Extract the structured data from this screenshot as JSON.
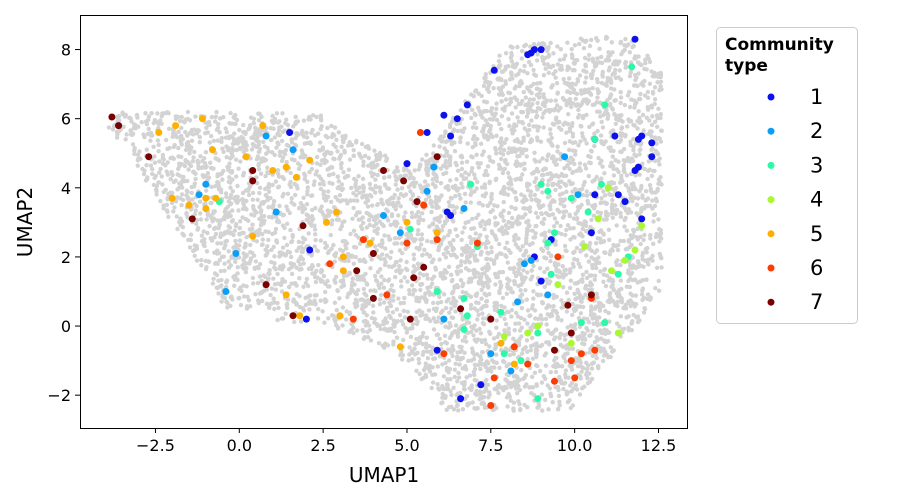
{
  "chart_data": {
    "type": "scatter",
    "title": "",
    "xlabel": "UMAP1",
    "ylabel": "UMAP2",
    "xlim": [
      -4.75,
      13.35
    ],
    "ylim": [
      -2.95,
      9.0
    ],
    "xticks": [
      -2.5,
      0.0,
      2.5,
      5.0,
      7.5,
      10.0,
      12.5
    ],
    "xtick_labels": [
      "−2.5",
      "0.0",
      "2.5",
      "5.0",
      "7.5",
      "10.0",
      "12.5"
    ],
    "yticks": [
      -2,
      0,
      2,
      4,
      6,
      8
    ],
    "ytick_labels": [
      "−2",
      "0",
      "2",
      "4",
      "6",
      "8"
    ],
    "grid": false,
    "legend": {
      "title": "Community\ntype",
      "placement": "right-outside"
    },
    "background_points": {
      "color": "#d3d3d3",
      "description": "unlabeled cells",
      "count_approx": 5000
    },
    "series": [
      {
        "name": "1",
        "color": "#0a10ee",
        "points": [
          [
            8.7,
            7.9
          ],
          [
            8.8,
            8.0
          ],
          [
            9.0,
            8.0
          ],
          [
            8.6,
            7.85
          ],
          [
            7.6,
            7.4
          ],
          [
            11.8,
            8.3
          ],
          [
            6.8,
            6.4
          ],
          [
            6.1,
            6.1
          ],
          [
            6.5,
            6.0
          ],
          [
            1.5,
            5.6
          ],
          [
            5.6,
            5.6
          ],
          [
            6.3,
            5.5
          ],
          [
            11.2,
            5.5
          ],
          [
            12.0,
            5.5
          ],
          [
            10.6,
            5.4
          ],
          [
            12.3,
            5.3
          ],
          [
            11.9,
            5.4
          ],
          [
            12.3,
            4.9
          ],
          [
            5.0,
            4.7
          ],
          [
            11.9,
            4.6
          ],
          [
            11.8,
            4.5
          ],
          [
            10.6,
            3.8
          ],
          [
            11.3,
            3.8
          ],
          [
            11.5,
            3.6
          ],
          [
            6.2,
            3.3
          ],
          [
            6.3,
            3.2
          ],
          [
            12.0,
            3.1
          ],
          [
            10.5,
            2.7
          ],
          [
            9.3,
            2.5
          ],
          [
            2.1,
            2.2
          ],
          [
            8.8,
            2.0
          ],
          [
            9.0,
            1.3
          ],
          [
            2.0,
            0.2
          ],
          [
            5.9,
            -0.7
          ],
          [
            7.2,
            -1.7
          ],
          [
            6.6,
            -2.1
          ]
        ]
      },
      {
        "name": "2",
        "color": "#0a9ef8",
        "points": [
          [
            -3.6,
            5.8
          ],
          [
            0.8,
            5.5
          ],
          [
            1.6,
            5.1
          ],
          [
            9.7,
            4.9
          ],
          [
            5.8,
            4.6
          ],
          [
            -1.0,
            4.1
          ],
          [
            -1.2,
            3.8
          ],
          [
            5.6,
            3.9
          ],
          [
            10.1,
            3.8
          ],
          [
            6.7,
            3.4
          ],
          [
            4.3,
            3.2
          ],
          [
            1.1,
            3.3
          ],
          [
            4.8,
            2.7
          ],
          [
            -0.1,
            2.1
          ],
          [
            8.5,
            1.8
          ],
          [
            8.7,
            1.9
          ],
          [
            -0.4,
            1.0
          ],
          [
            9.2,
            0.9
          ],
          [
            8.3,
            0.7
          ],
          [
            6.1,
            0.2
          ],
          [
            7.5,
            -0.8
          ],
          [
            8.1,
            -1.3
          ]
        ]
      },
      {
        "name": "3",
        "color": "#2afaa8",
        "points": [
          [
            11.7,
            7.5
          ],
          [
            10.9,
            6.4
          ],
          [
            6.9,
            4.1
          ],
          [
            10.6,
            5.4
          ],
          [
            9.0,
            4.1
          ],
          [
            10.8,
            4.1
          ],
          [
            9.2,
            3.9
          ],
          [
            -0.6,
            3.6
          ],
          [
            10.4,
            3.3
          ],
          [
            9.9,
            3.7
          ],
          [
            5.1,
            2.8
          ],
          [
            9.4,
            2.7
          ],
          [
            7.1,
            2.3
          ],
          [
            9.2,
            2.4
          ],
          [
            11.6,
            2.0
          ],
          [
            5.9,
            1.0
          ],
          [
            11.3,
            1.5
          ],
          [
            9.3,
            1.5
          ],
          [
            6.7,
            0.8
          ],
          [
            6.8,
            0.3
          ],
          [
            7.8,
            0.4
          ],
          [
            10.2,
            0.1
          ],
          [
            10.9,
            0.1
          ],
          [
            6.7,
            -0.1
          ],
          [
            8.9,
            -0.2
          ],
          [
            7.9,
            -0.8
          ],
          [
            8.4,
            -1.0
          ],
          [
            8.9,
            -2.1
          ]
        ]
      },
      {
        "name": "4",
        "color": "#aaf832",
        "points": [
          [
            11.0,
            4.0
          ],
          [
            10.7,
            3.1
          ],
          [
            12.0,
            2.9
          ],
          [
            10.3,
            2.3
          ],
          [
            11.8,
            2.2
          ],
          [
            11.5,
            1.9
          ],
          [
            11.1,
            1.6
          ],
          [
            9.5,
            1.2
          ],
          [
            8.9,
            0.0
          ],
          [
            8.6,
            -0.2
          ],
          [
            7.9,
            -0.3
          ],
          [
            9.9,
            -0.5
          ],
          [
            11.3,
            -0.2
          ]
        ]
      },
      {
        "name": "5",
        "color": "#fdb000",
        "points": [
          [
            -2.4,
            5.6
          ],
          [
            -1.9,
            5.8
          ],
          [
            -1.1,
            6.0
          ],
          [
            0.7,
            5.8
          ],
          [
            -0.8,
            5.1
          ],
          [
            0.2,
            4.9
          ],
          [
            1.4,
            4.6
          ],
          [
            2.1,
            4.8
          ],
          [
            1.0,
            4.5
          ],
          [
            1.7,
            4.3
          ],
          [
            -2.0,
            3.7
          ],
          [
            -1.5,
            3.5
          ],
          [
            -1.0,
            3.4
          ],
          [
            -1.0,
            3.7
          ],
          [
            -0.7,
            3.7
          ],
          [
            2.9,
            3.3
          ],
          [
            2.6,
            3.0
          ],
          [
            5.0,
            3.0
          ],
          [
            5.9,
            2.7
          ],
          [
            0.4,
            2.6
          ],
          [
            3.1,
            2.0
          ],
          [
            3.9,
            2.4
          ],
          [
            3.1,
            1.6
          ],
          [
            1.4,
            0.9
          ],
          [
            3.0,
            0.3
          ],
          [
            1.8,
            0.3
          ],
          [
            4.8,
            -0.6
          ],
          [
            7.8,
            -0.5
          ],
          [
            8.2,
            -1.1
          ]
        ]
      },
      {
        "name": "6",
        "color": "#fb3d00",
        "points": [
          [
            5.4,
            5.6
          ],
          [
            5.5,
            3.5
          ],
          [
            5.0,
            2.4
          ],
          [
            5.9,
            2.5
          ],
          [
            7.1,
            2.4
          ],
          [
            3.7,
            2.5
          ],
          [
            2.7,
            1.8
          ],
          [
            9.5,
            2.0
          ],
          [
            10.5,
            0.8
          ],
          [
            4.4,
            0.9
          ],
          [
            3.4,
            0.2
          ],
          [
            8.2,
            -0.6
          ],
          [
            6.1,
            -0.8
          ],
          [
            10.2,
            -0.8
          ],
          [
            10.6,
            -0.7
          ],
          [
            9.9,
            -1.0
          ],
          [
            8.6,
            -1.1
          ],
          [
            7.6,
            -1.5
          ],
          [
            10.0,
            -1.5
          ],
          [
            9.4,
            -1.6
          ],
          [
            7.5,
            -2.3
          ]
        ]
      },
      {
        "name": "7",
        "color": "#7b0000",
        "points": [
          [
            -3.8,
            6.05
          ],
          [
            -3.6,
            5.8
          ],
          [
            -2.7,
            4.9
          ],
          [
            5.9,
            4.9
          ],
          [
            0.4,
            4.5
          ],
          [
            4.3,
            4.5
          ],
          [
            0.4,
            4.2
          ],
          [
            4.9,
            4.2
          ],
          [
            -1.4,
            3.1
          ],
          [
            5.3,
            3.6
          ],
          [
            1.9,
            2.9
          ],
          [
            4.0,
            2.1
          ],
          [
            3.5,
            1.6
          ],
          [
            5.5,
            1.7
          ],
          [
            5.2,
            1.4
          ],
          [
            0.8,
            1.2
          ],
          [
            4.0,
            0.8
          ],
          [
            6.6,
            0.5
          ],
          [
            10.5,
            0.9
          ],
          [
            9.8,
            0.6
          ],
          [
            1.6,
            0.3
          ],
          [
            5.1,
            0.2
          ],
          [
            7.5,
            0.2
          ],
          [
            9.9,
            -0.2
          ],
          [
            9.4,
            -0.7
          ]
        ]
      }
    ]
  }
}
